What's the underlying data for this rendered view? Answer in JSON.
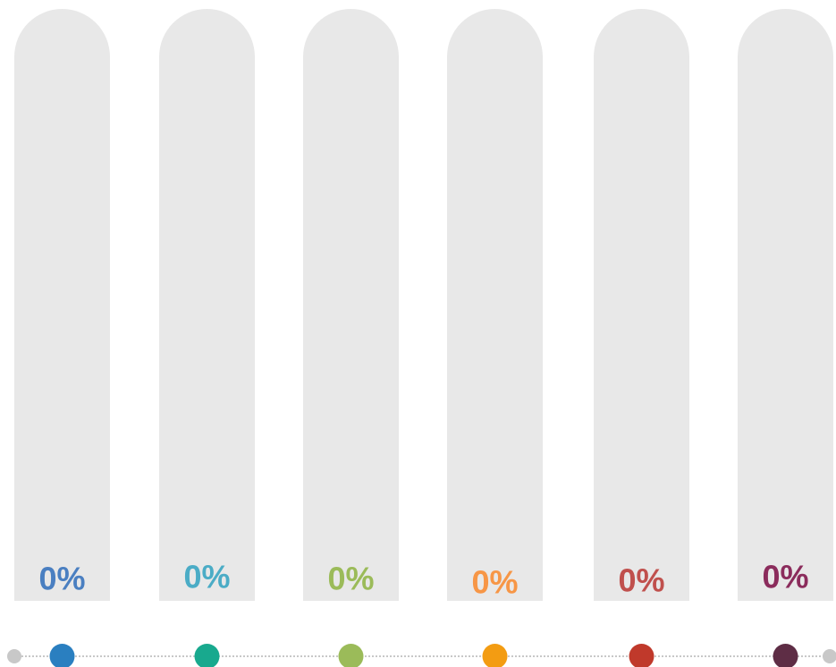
{
  "chart_data": {
    "type": "bar",
    "categories": [
      null,
      null,
      null,
      null,
      null,
      null
    ],
    "values": [
      0,
      0,
      0,
      0,
      0,
      0
    ],
    "value_labels": [
      "0%",
      "0%",
      "0%",
      "0%",
      "0%",
      "0%"
    ],
    "colors": [
      "#4a7fc1",
      "#4bacc6",
      "#9bbb59",
      "#f79646",
      "#c0504d",
      "#8b2c5c"
    ],
    "dot_colors": [
      "#2a7fc0",
      "#18a98e",
      "#9bbb59",
      "#f39c12",
      "#c0392b",
      "#5e2d45"
    ],
    "track_color": "#e8e8e8",
    "ylim": [
      0,
      100
    ]
  }
}
